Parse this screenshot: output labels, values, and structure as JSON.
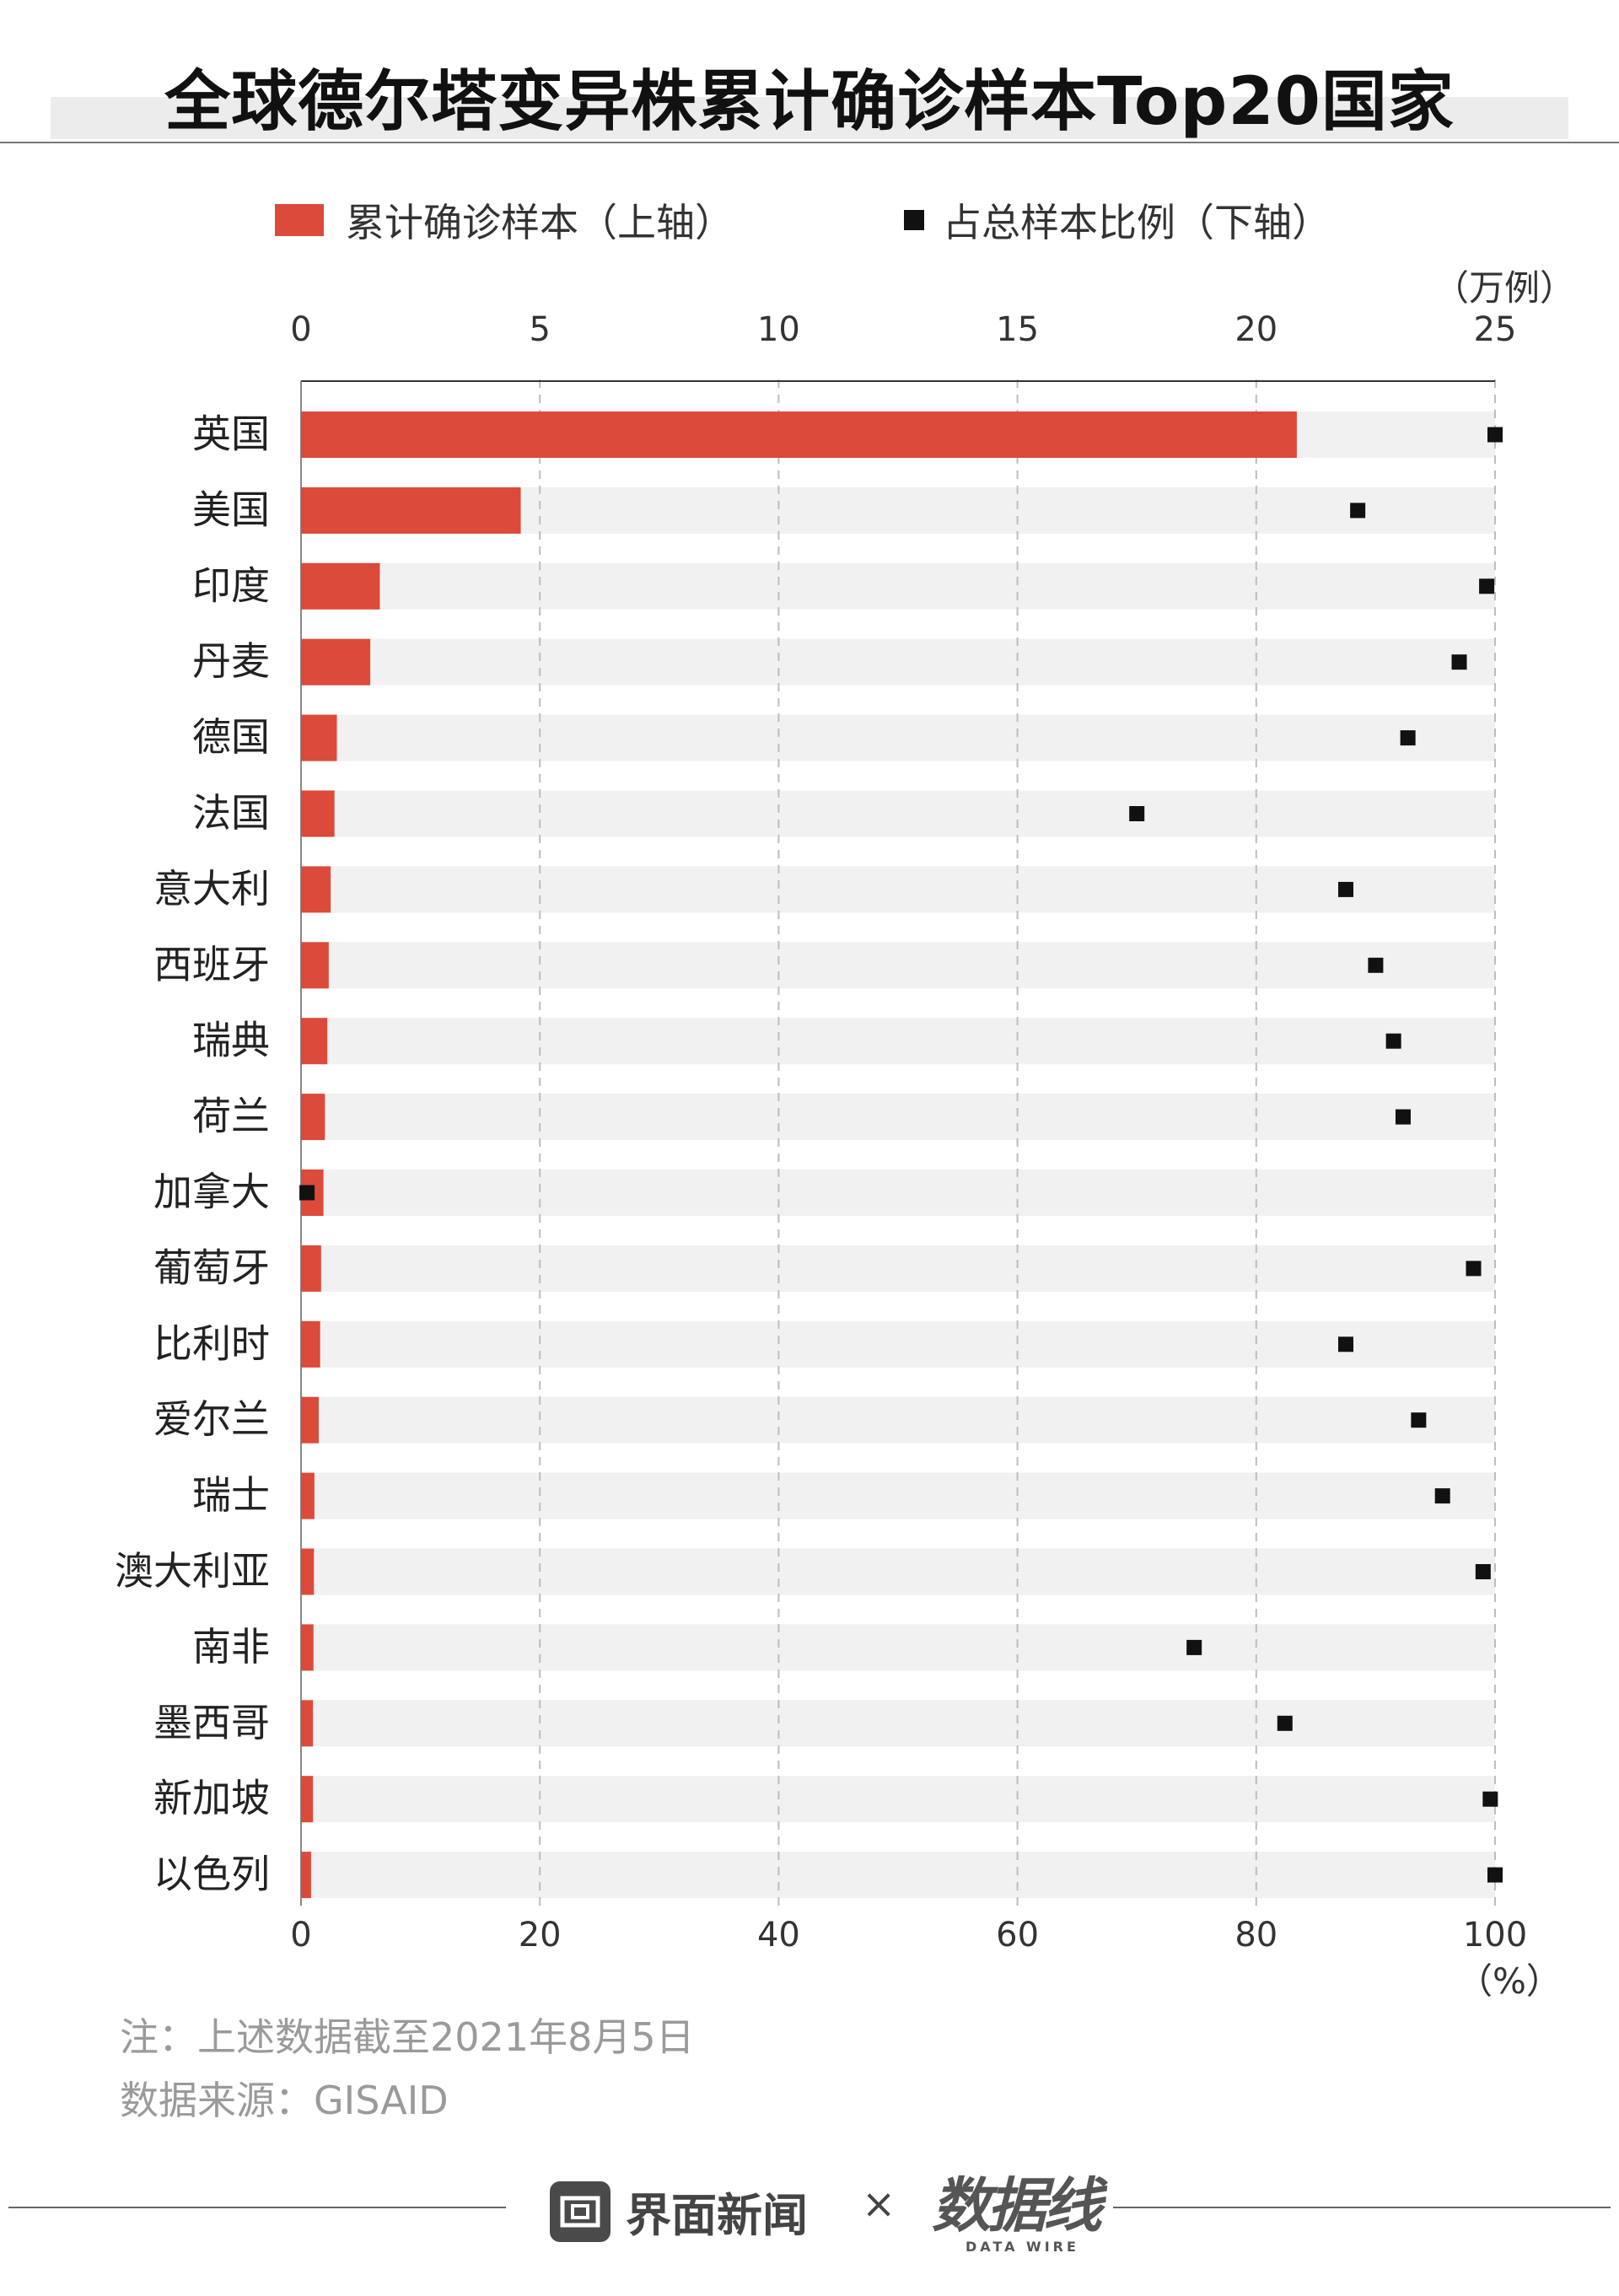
{
  "title": "全球德尔塔变异株累计确诊样本Top20国家",
  "legend": {
    "bar_label": "累计确诊样本（上轴）",
    "dot_label": "占总样本比例（下轴）"
  },
  "colors": {
    "bar": "#dc4a3a",
    "dot": "#111111",
    "row_band": "#f1f1f1",
    "grid": "#bdbdbd"
  },
  "top_axis_unit": "（万例）",
  "bottom_axis_unit": "（%）",
  "notes": {
    "note": "注：上述数据截至2021年8月5日",
    "source": "数据来源：GISAID"
  },
  "footer": {
    "brand": "界面新闻",
    "separator": "×",
    "partner": "数据线",
    "partner_sub": "DATA WIRE"
  },
  "chart_data": {
    "type": "bar",
    "orientation": "horizontal",
    "categories": [
      "英国",
      "美国",
      "印度",
      "丹麦",
      "德国",
      "法国",
      "意大利",
      "西班牙",
      "瑞典",
      "荷兰",
      "加拿大",
      "葡萄牙",
      "比利时",
      "爱尔兰",
      "瑞士",
      "澳大利亚",
      "南非",
      "墨西哥",
      "新加坡",
      "以色列"
    ],
    "series": [
      {
        "axis": "top",
        "values": [
          20.85,
          4.6,
          1.65,
          1.45,
          0.75,
          0.7,
          0.62,
          0.58,
          0.55,
          0.5,
          0.47,
          0.42,
          0.4,
          0.37,
          0.28,
          0.27,
          0.26,
          0.25,
          0.25,
          0.21
        ]
      },
      {
        "axis": "bottom",
        "values": [
          100,
          88.5,
          99.3,
          97,
          92.7,
          70,
          87.5,
          90,
          91.5,
          92.3,
          0.5,
          98.2,
          87.5,
          93.6,
          95.6,
          99,
          74.8,
          82.4,
          99.6,
          100
        ]
      }
    ],
    "top_axis": {
      "ticks": [
        0,
        5,
        10,
        15,
        20,
        25
      ],
      "range": [
        0,
        25
      ]
    },
    "bottom_axis": {
      "ticks": [
        0,
        20,
        40,
        60,
        80,
        100
      ],
      "range": [
        0,
        100
      ]
    },
    "grid": true,
    "legend_position": "top"
  }
}
